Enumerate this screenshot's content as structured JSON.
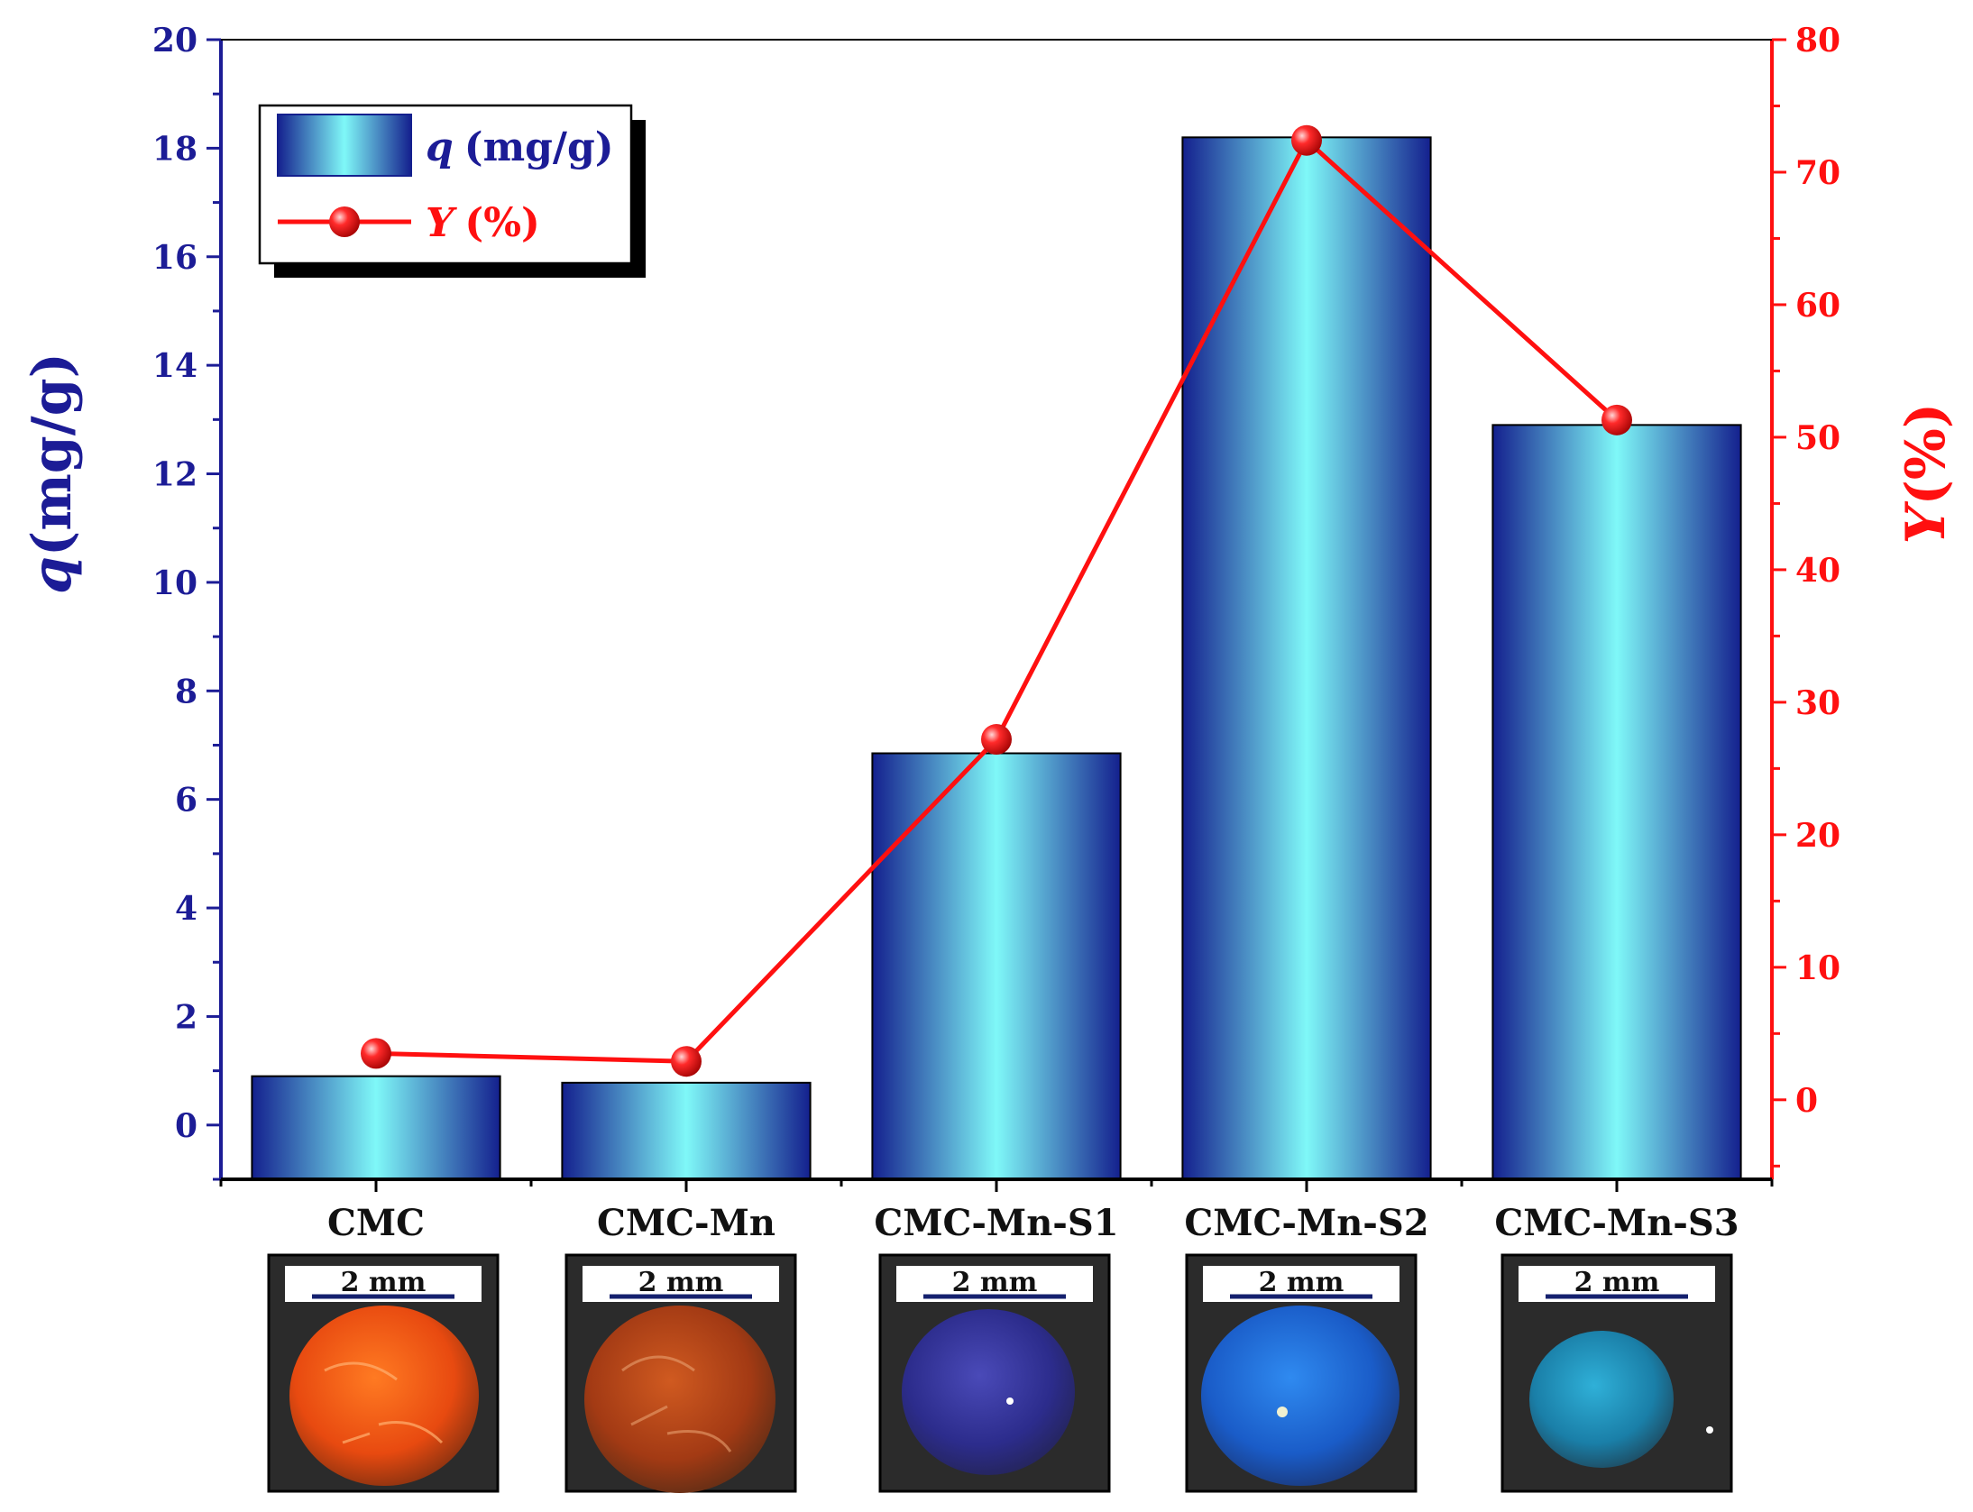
{
  "colors": {
    "left_axis": "#1c1c96",
    "right_axis": "#ff1010",
    "bar_edge": "#14208e",
    "bar_center": "#7ff8f8",
    "line": "#ff1010"
  },
  "chart_data": {
    "type": "bar",
    "categories": [
      "CMC",
      "CMC-Mn",
      "CMC-Mn-S1",
      "CMC-Mn-S2",
      "CMC-Mn-S3"
    ],
    "series": [
      {
        "name": "q (mg/g)",
        "kind": "bar",
        "axis": "left",
        "values": [
          0.9,
          0.78,
          6.85,
          18.2,
          12.9
        ]
      },
      {
        "name": "Y (%)",
        "kind": "line",
        "axis": "right",
        "values": [
          3.5,
          2.9,
          27.2,
          72.4,
          51.3
        ]
      }
    ],
    "y_left": {
      "label_symbol": "q",
      "label_unit": "(mg/g)",
      "ylim": [
        -1,
        20
      ],
      "ticks": [
        "0",
        "2",
        "4",
        "6",
        "8",
        "10",
        "12",
        "14",
        "16",
        "18",
        "20"
      ]
    },
    "y_right": {
      "label_symbol": "Y",
      "label_unit": "(%)",
      "ylim": [
        -6,
        80
      ],
      "ticks": [
        "0",
        "10",
        "20",
        "30",
        "40",
        "50",
        "60",
        "70",
        "80"
      ]
    },
    "legend": {
      "placement": "top-left",
      "bar_symbol": "q",
      "bar_unit": "(mg/g)",
      "line_symbol": "Y",
      "line_unit": "(%)"
    },
    "inset_images": {
      "scale_bar": "2 mm",
      "samples": [
        {
          "category": "CMC",
          "bead_color": "orange-red"
        },
        {
          "category": "CMC-Mn",
          "bead_color": "brown-orange"
        },
        {
          "category": "CMC-Mn-S1",
          "bead_color": "dark blue"
        },
        {
          "category": "CMC-Mn-S2",
          "bead_color": "blue"
        },
        {
          "category": "CMC-Mn-S3",
          "bead_color": "teal blue"
        }
      ]
    }
  }
}
